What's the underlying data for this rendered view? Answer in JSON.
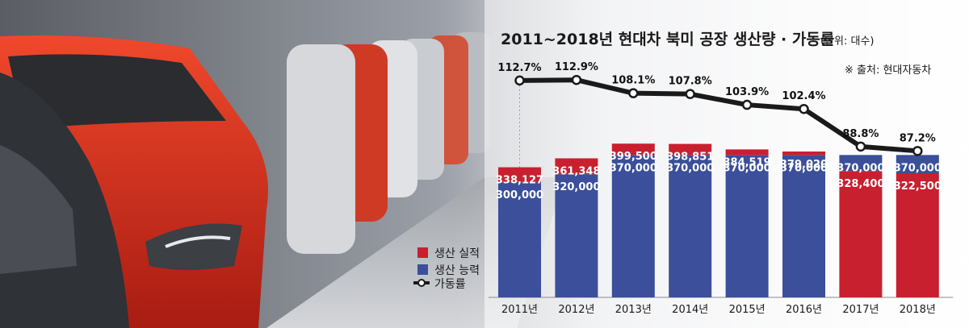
{
  "chart_data": {
    "type": "bar",
    "title": "2011~2018년 현대차 북미 공장 생산량 · 가동률",
    "unit": "(단위: 대수)",
    "source": "※ 출처: 현대자동차",
    "categories": [
      "2011년",
      "2012년",
      "2013년",
      "2014년",
      "2015년",
      "2016년",
      "2017년",
      "2018년"
    ],
    "series": [
      {
        "name": "생산 실적",
        "values": [
          338127,
          361348,
          399500,
          398851,
          384519,
          379020,
          328400,
          322500
        ],
        "labels": [
          "338,127",
          "361,348",
          "399,500",
          "398,851",
          "384,519",
          "379,020",
          "328,400",
          "322,500"
        ]
      },
      {
        "name": "생산 능력",
        "values": [
          300000,
          320000,
          370000,
          370000,
          370000,
          370000,
          370000,
          370000
        ],
        "labels": [
          "300,000",
          "320,000",
          "370,000",
          "370,000",
          "370,000",
          "370,000",
          "370,000",
          "370,000"
        ]
      },
      {
        "name": "가동률",
        "values": [
          112.7,
          112.9,
          108.1,
          107.8,
          103.9,
          102.4,
          88.8,
          87.2
        ],
        "labels": [
          "112.7%",
          "112.9%",
          "108.1%",
          "107.8%",
          "103.9%",
          "102.4%",
          "88.8%",
          "87.2%"
        ]
      }
    ],
    "colors": {
      "actual": "#c8202f",
      "capacity": "#3b4f9a",
      "rate": "#1a1a1a"
    }
  }
}
